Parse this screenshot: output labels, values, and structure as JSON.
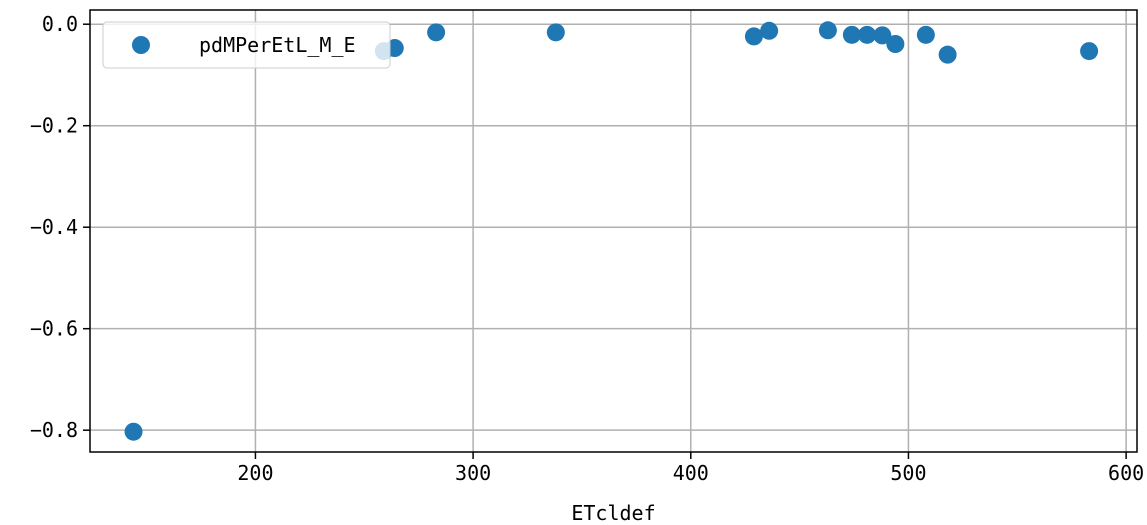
{
  "chart_data": {
    "type": "scatter",
    "title": "",
    "xlabel": "ETcldef",
    "ylabel": "",
    "xlim": [
      124,
      605
    ],
    "ylim": [
      -0.843,
      0.028
    ],
    "xticks": [
      200,
      300,
      400,
      500,
      600
    ],
    "xtick_labels": [
      "200",
      "300",
      "400",
      "500",
      "600"
    ],
    "yticks": [
      0.0,
      -0.2,
      -0.4,
      -0.6,
      -0.8
    ],
    "ytick_labels": [
      "0.0",
      "−0.2",
      "−0.4",
      "−0.6",
      "−0.8"
    ],
    "grid": true,
    "legend_position": "top-left",
    "series": [
      {
        "name": "pdMPerEtL_M_E",
        "color": "#1f77b4",
        "x": [
          144,
          259,
          264,
          283,
          338,
          429,
          436,
          463,
          474,
          481,
          488,
          494,
          508,
          518,
          583
        ],
        "y": [
          -0.803,
          -0.053,
          -0.047,
          -0.016,
          -0.016,
          -0.024,
          -0.013,
          -0.012,
          -0.021,
          -0.021,
          -0.022,
          -0.039,
          -0.021,
          -0.06,
          -0.053
        ]
      }
    ]
  }
}
